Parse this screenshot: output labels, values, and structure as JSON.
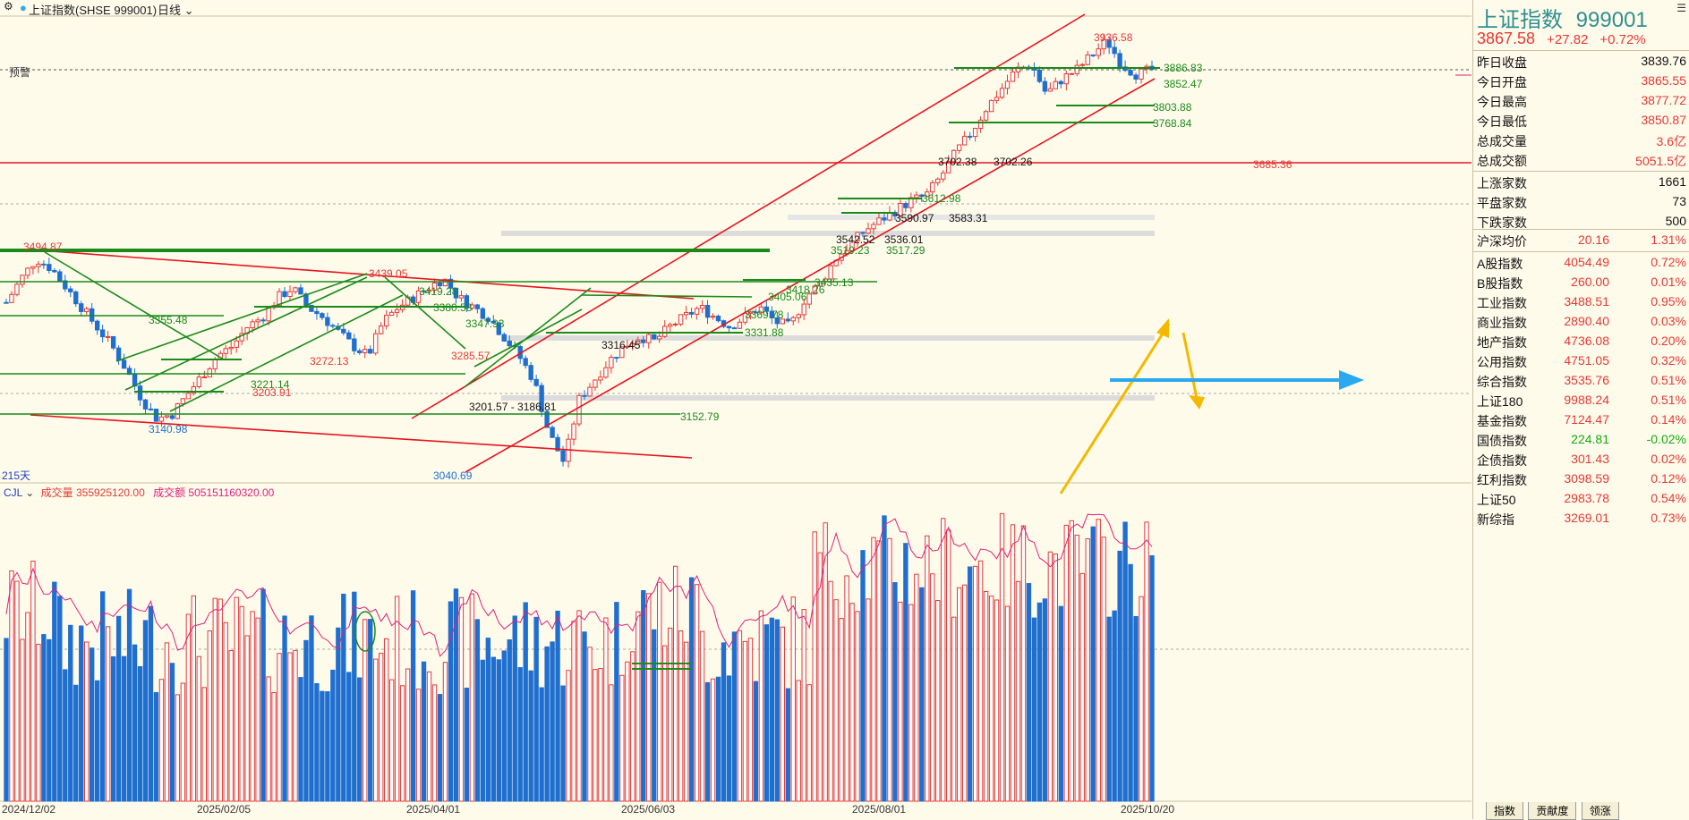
{
  "header": {
    "title": "上证指数(SHSE 999001)",
    "period": "日线",
    "price_tag": "预警"
  },
  "panel": {
    "name": "上证指数",
    "code": "999001",
    "price": "3867.58",
    "change": "+27.82",
    "change_pct": "+0.72%",
    "rows_a": [
      {
        "label": "昨日收盘",
        "value": "3839.76",
        "color": "black"
      },
      {
        "label": "今日开盘",
        "value": "3865.55",
        "color": "red"
      },
      {
        "label": "今日最高",
        "value": "3877.72",
        "color": "red"
      },
      {
        "label": "今日最低",
        "value": "3850.87",
        "color": "red"
      },
      {
        "label": "总成交量",
        "value": "3.6亿",
        "color": "red"
      },
      {
        "label": "总成交额",
        "value": "5051.5亿",
        "color": "red"
      }
    ],
    "rows_b": [
      {
        "label": "上涨家数",
        "value": "1661",
        "color": "black"
      },
      {
        "label": "平盘家数",
        "value": "73",
        "color": "black"
      },
      {
        "label": "下跌家数",
        "value": "500",
        "color": "black"
      }
    ],
    "avg_row": {
      "label": "沪深均价",
      "value": "20.16",
      "pct": "1.31%"
    },
    "indices": [
      {
        "label": "A股指数",
        "value": "4054.49",
        "pct": "0.72%",
        "color": "red"
      },
      {
        "label": "B股指数",
        "value": "260.00",
        "pct": "0.01%",
        "color": "red"
      },
      {
        "label": "工业指数",
        "value": "3488.51",
        "pct": "0.95%",
        "color": "red"
      },
      {
        "label": "商业指数",
        "value": "2890.40",
        "pct": "0.03%",
        "color": "red"
      },
      {
        "label": "地产指数",
        "value": "4736.08",
        "pct": "0.20%",
        "color": "red"
      },
      {
        "label": "公用指数",
        "value": "4751.05",
        "pct": "0.32%",
        "color": "red"
      },
      {
        "label": "综合指数",
        "value": "3535.76",
        "pct": "0.51%",
        "color": "red"
      },
      {
        "label": "上证180",
        "value": "9988.24",
        "pct": "0.51%",
        "color": "red"
      },
      {
        "label": "基金指数",
        "value": "7124.47",
        "pct": "0.14%",
        "color": "red"
      },
      {
        "label": "国债指数",
        "value": "224.81",
        "pct": "-0.02%",
        "color": "green"
      },
      {
        "label": "企债指数",
        "value": "301.43",
        "pct": "0.02%",
        "color": "red"
      },
      {
        "label": "红利指数",
        "value": "3098.59",
        "pct": "0.12%",
        "color": "red"
      },
      {
        "label": "上证50",
        "value": "2983.78",
        "pct": "0.54%",
        "color": "red"
      },
      {
        "label": "新综指",
        "value": "3269.01",
        "pct": "0.73%",
        "color": "red"
      }
    ],
    "tabs": [
      "指数",
      "贡献度",
      "领涨"
    ]
  },
  "chart_labels": {
    "period_days": "215天",
    "volume_legend": "CJL",
    "volume_label": "成交量 355925120.00",
    "amount_label": "成交额 505151160320.00",
    "x_ticks": [
      "2024/12/02",
      "2025/02/05",
      "2025/04/01",
      "2025/06/03",
      "2025/08/01",
      "2025/10/20"
    ],
    "price_annotations": [
      {
        "text": "3936.58",
        "color": "#e53935"
      },
      {
        "text": "3886.83",
        "color": "#1a8a1a"
      },
      {
        "text": "3852.47",
        "color": "#1a8a1a"
      },
      {
        "text": "3803.88",
        "color": "#1a8a1a"
      },
      {
        "text": "3768.84",
        "color": "#1a8a1a"
      },
      {
        "text": "3702.38",
        "color": "#111"
      },
      {
        "text": "3702.26",
        "color": "#111"
      },
      {
        "text": "3685.36",
        "color": "#e53935"
      },
      {
        "text": "3612.98",
        "color": "#1a8a1a"
      },
      {
        "text": "3590.97",
        "color": "#111"
      },
      {
        "text": "3583.31",
        "color": "#111"
      },
      {
        "text": "3542.52",
        "color": "#111"
      },
      {
        "text": "3536.01",
        "color": "#111"
      },
      {
        "text": "3519.23",
        "color": "#1a8a1a"
      },
      {
        "text": "3517.29",
        "color": "#1a8a1a"
      },
      {
        "text": "3494.87",
        "color": "#e53935"
      },
      {
        "text": "3439.05",
        "color": "#e53935"
      },
      {
        "text": "3435.13",
        "color": "#1a8a1a"
      },
      {
        "text": "3419.28",
        "color": "#1a8a1a"
      },
      {
        "text": "3418.26",
        "color": "#1a8a1a"
      },
      {
        "text": "3405.06",
        "color": "#1a8a1a"
      },
      {
        "text": "3380.58",
        "color": "#1a8a1a"
      },
      {
        "text": "3369.78",
        "color": "#1a8a1a"
      },
      {
        "text": "3355.48",
        "color": "#1a8a1a"
      },
      {
        "text": "3347.93",
        "color": "#1a8a1a"
      },
      {
        "text": "3331.88",
        "color": "#1a8a1a"
      },
      {
        "text": "3316.45",
        "color": "#111"
      },
      {
        "text": "3285.57",
        "color": "#e53935"
      },
      {
        "text": "3272.13",
        "color": "#e53935"
      },
      {
        "text": "3221.14",
        "color": "#1a8a1a"
      },
      {
        "text": "3203.91",
        "color": "#e53935"
      },
      {
        "text": "3201.57 - 3186.81",
        "color": "#111"
      },
      {
        "text": "3152.79",
        "color": "#1a8a1a"
      },
      {
        "text": "3140.98",
        "color": "#1e6fd0"
      },
      {
        "text": "3040.69",
        "color": "#1e6fd0"
      }
    ]
  },
  "colors": {
    "up": "#e53935",
    "down": "#1e6fd0",
    "trend_green": "#1a8a1a",
    "trend_red": "#e8141e",
    "arrow_yellow": "#f5b800",
    "arrow_blue": "#2aa8f0",
    "ma_line": "#e0207a"
  }
}
